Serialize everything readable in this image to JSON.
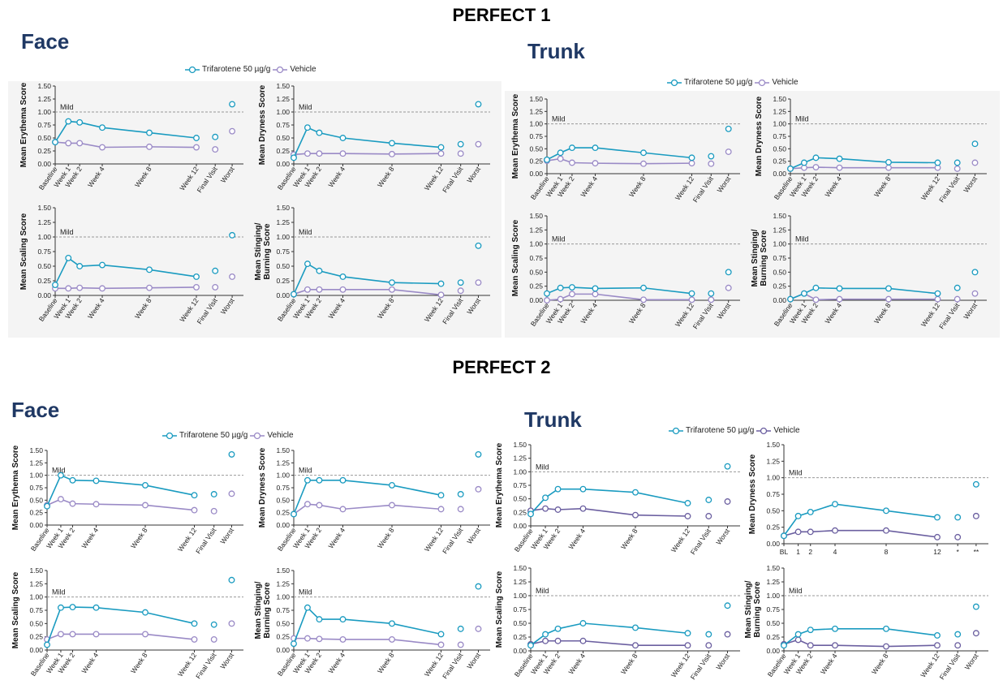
{
  "studies": [
    {
      "title": "PERFECT 1"
    },
    {
      "title": "PERFECT 2"
    }
  ],
  "regions": {
    "p1_face": "Face",
    "p1_trunk": "Trunk",
    "p2_face": "Face",
    "p2_trunk": "Trunk"
  },
  "legend": {
    "trifarotene": "Trifarotene 50 µg/g",
    "vehicle": "Vehicle"
  },
  "colors": {
    "trifarotene": "#1a9bc0",
    "vehicle": "#9a8ac6",
    "vehicle_dark": "#6b5fa0",
    "reference": "#999999"
  },
  "reference_label": "Mild",
  "chart_data": [
    {
      "id": "p1-face-erythema",
      "type": "line",
      "ylabel": "Mean Erythema Score",
      "ylim": [
        0,
        1.5
      ],
      "yticks": [
        "0.00",
        "0.25",
        "0.50",
        "0.75",
        "1.00",
        "1.25",
        "1.50"
      ],
      "reference_y": 1.0,
      "categories": [
        "Baseline",
        "Week 1",
        "Week 2",
        "Week 4",
        "Week 8",
        "Week 12",
        "Final Visit",
        "Worst"
      ],
      "series": [
        {
          "name": "Trifarotene 50 µg/g",
          "values": [
            0.42,
            0.82,
            0.8,
            0.7,
            0.6,
            0.5,
            0.52,
            1.15
          ]
        },
        {
          "name": "Vehicle",
          "values": [
            0.42,
            0.4,
            0.4,
            0.32,
            0.33,
            0.32,
            0.28,
            0.63
          ]
        }
      ]
    },
    {
      "id": "p1-face-dryness",
      "type": "line",
      "ylabel": "Mean Dryness Score",
      "ylim": [
        0,
        1.5
      ],
      "yticks": [
        "0.00",
        "0.25",
        "0.50",
        "0.75",
        "1.00",
        "1.25",
        "1.50"
      ],
      "reference_y": 1.0,
      "categories": [
        "Baseline",
        "Week 1",
        "Week 2",
        "Week 4",
        "Week 8",
        "Week 12",
        "Final Visit",
        "Worst"
      ],
      "series": [
        {
          "name": "Trifarotene 50 µg/g",
          "values": [
            0.12,
            0.7,
            0.6,
            0.5,
            0.4,
            0.32,
            0.38,
            1.15
          ]
        },
        {
          "name": "Vehicle",
          "values": [
            0.18,
            0.2,
            0.2,
            0.2,
            0.19,
            0.2,
            0.2,
            0.38
          ]
        }
      ]
    },
    {
      "id": "p1-face-scaling",
      "type": "line",
      "ylabel": "Mean Scaling Score",
      "ylim": [
        0,
        1.5
      ],
      "yticks": [
        "0.00",
        "0.25",
        "0.50",
        "0.75",
        "1.00",
        "1.25",
        "1.50"
      ],
      "reference_y": 1.0,
      "categories": [
        "Baseline",
        "Week 1",
        "Week 2",
        "Week 4",
        "Week 8",
        "Week 12",
        "Final Visit",
        "Worst"
      ],
      "series": [
        {
          "name": "Trifarotene 50 µg/g",
          "values": [
            0.18,
            0.64,
            0.5,
            0.52,
            0.44,
            0.32,
            0.42,
            1.03
          ]
        },
        {
          "name": "Vehicle",
          "values": [
            0.12,
            0.12,
            0.13,
            0.12,
            0.13,
            0.14,
            0.14,
            0.32
          ]
        }
      ]
    },
    {
      "id": "p1-face-stinging",
      "type": "line",
      "ylabel": "Mean Stinging/ Burning Score",
      "ylim": [
        0,
        1.5
      ],
      "yticks": [
        "0.00",
        "0.25",
        "0.50",
        "0.75",
        "1.00",
        "1.25",
        "1.50"
      ],
      "reference_y": 1.0,
      "categories": [
        "Baseline",
        "Week 1",
        "Week 2",
        "Week 4",
        "Week 8",
        "Week 12",
        "Final Visit",
        "Worst"
      ],
      "series": [
        {
          "name": "Trifarotene 50 µg/g",
          "values": [
            0.02,
            0.54,
            0.42,
            0.32,
            0.22,
            0.2,
            0.22,
            0.85
          ]
        },
        {
          "name": "Vehicle",
          "values": [
            0.02,
            0.1,
            0.1,
            0.1,
            0.1,
            0.01,
            0.08,
            0.22
          ]
        }
      ]
    },
    {
      "id": "p1-trunk-erythema",
      "type": "line",
      "ylabel": "Mean Erythema Score",
      "ylim": [
        0,
        1.5
      ],
      "yticks": [
        "0.00",
        "0.25",
        "0.50",
        "0.75",
        "1.00",
        "1.25",
        "1.50"
      ],
      "reference_y": 1.0,
      "categories": [
        "Baseline",
        "Week 1",
        "Week 2",
        "Week 4",
        "Week 8",
        "Week 12",
        "Final Visit",
        "Worst"
      ],
      "series": [
        {
          "name": "Trifarotene 50 µg/g",
          "values": [
            0.28,
            0.42,
            0.52,
            0.52,
            0.42,
            0.32,
            0.35,
            0.9
          ]
        },
        {
          "name": "Vehicle",
          "values": [
            0.26,
            0.3,
            0.22,
            0.21,
            0.2,
            0.21,
            0.2,
            0.44
          ]
        }
      ]
    },
    {
      "id": "p1-trunk-dryness",
      "type": "line",
      "ylabel": "Mean Dryness Score",
      "ylim": [
        0,
        1.5
      ],
      "yticks": [
        "0.00",
        "0.25",
        "0.50",
        "0.75",
        "1.00",
        "1.25",
        "1.50"
      ],
      "reference_y": 1.0,
      "categories": [
        "Baseline",
        "Week 1",
        "Week 2",
        "Week 4",
        "Week 8",
        "Week 12",
        "Final Visit",
        "Worst"
      ],
      "series": [
        {
          "name": "Trifarotene 50 µg/g",
          "values": [
            0.1,
            0.22,
            0.32,
            0.3,
            0.23,
            0.22,
            0.22,
            0.6
          ]
        },
        {
          "name": "Vehicle",
          "values": [
            0.1,
            0.12,
            0.13,
            0.12,
            0.12,
            0.12,
            0.1,
            0.22
          ]
        }
      ]
    },
    {
      "id": "p1-trunk-scaling",
      "type": "line",
      "ylabel": "Mean Scaling Score",
      "ylim": [
        0,
        1.5
      ],
      "yticks": [
        "0.00",
        "0.25",
        "0.50",
        "0.75",
        "1.00",
        "1.25",
        "1.50"
      ],
      "reference_y": 1.0,
      "categories": [
        "Baseline",
        "Week 1",
        "Week 2",
        "Week 4",
        "Week 8",
        "Week 12",
        "Final Visit",
        "Worst"
      ],
      "series": [
        {
          "name": "Trifarotene 50 µg/g",
          "values": [
            0.12,
            0.22,
            0.23,
            0.21,
            0.22,
            0.12,
            0.12,
            0.5
          ]
        },
        {
          "name": "Vehicle",
          "values": [
            0.0,
            0.02,
            0.11,
            0.11,
            0.01,
            0.01,
            0.01,
            0.22
          ]
        }
      ]
    },
    {
      "id": "p1-trunk-stinging",
      "type": "line",
      "ylabel": "Mean Stinging/ Burning Score",
      "ylim": [
        0,
        1.5
      ],
      "yticks": [
        "0.00",
        "0.25",
        "0.50",
        "0.75",
        "1.00",
        "1.25",
        "1.50"
      ],
      "reference_y": 1.0,
      "categories": [
        "Baseline",
        "Week 1",
        "Week 2",
        "Week 4",
        "Week 8",
        "Week 12",
        "Final Visit",
        "Worst"
      ],
      "series": [
        {
          "name": "Trifarotene 50 µg/g",
          "values": [
            0.02,
            0.12,
            0.22,
            0.21,
            0.21,
            0.12,
            0.22,
            0.5
          ]
        },
        {
          "name": "Vehicle",
          "values": [
            0.02,
            0.12,
            0.01,
            0.02,
            0.02,
            0.02,
            0.02,
            0.12
          ]
        }
      ]
    },
    {
      "id": "p2-face-erythema",
      "type": "line",
      "ylabel": "Mean Erythema Score",
      "ylim": [
        0,
        1.5
      ],
      "yticks": [
        "0.00",
        "0.25",
        "0.50",
        "0.75",
        "1.00",
        "1.25",
        "1.50"
      ],
      "reference_y": 1.0,
      "categories": [
        "Baseline",
        "Week 1",
        "Week 2",
        "Week 4",
        "Week 8",
        "Week 12",
        "Final Visit",
        "Worst"
      ],
      "series": [
        {
          "name": "Trifarotene 50 µg/g",
          "values": [
            0.38,
            1.0,
            0.9,
            0.89,
            0.8,
            0.6,
            0.62,
            1.42
          ]
        },
        {
          "name": "Vehicle",
          "values": [
            0.4,
            0.52,
            0.43,
            0.42,
            0.4,
            0.3,
            0.28,
            0.63
          ]
        }
      ]
    },
    {
      "id": "p2-face-dryness",
      "type": "line",
      "ylabel": "Mean Dryness Score",
      "ylim": [
        0,
        1.5
      ],
      "yticks": [
        "0.00",
        "0.25",
        "0.50",
        "0.75",
        "1.00",
        "1.25",
        "1.50"
      ],
      "reference_y": 1.0,
      "categories": [
        "Baseline",
        "Week 1",
        "Week 2",
        "Week 4",
        "Week 8",
        "Week 12",
        "Final Visit",
        "Worst"
      ],
      "series": [
        {
          "name": "Trifarotene 50 µg/g",
          "values": [
            0.22,
            0.9,
            0.9,
            0.9,
            0.8,
            0.6,
            0.62,
            1.42
          ]
        },
        {
          "name": "Vehicle",
          "values": [
            0.22,
            0.42,
            0.4,
            0.32,
            0.4,
            0.32,
            0.32,
            0.72
          ]
        }
      ]
    },
    {
      "id": "p2-face-scaling",
      "type": "line",
      "ylabel": "Mean Scaling Score",
      "ylim": [
        0,
        1.5
      ],
      "yticks": [
        "0.00",
        "0.25",
        "0.50",
        "0.75",
        "1.00",
        "1.25",
        "1.50"
      ],
      "reference_y": 1.0,
      "categories": [
        "Baseline",
        "Week 1",
        "Week 2",
        "Week 4",
        "Week 8",
        "Week 12",
        "Final Visit",
        "Worst"
      ],
      "series": [
        {
          "name": "Trifarotene 50 µg/g",
          "values": [
            0.1,
            0.8,
            0.81,
            0.8,
            0.71,
            0.5,
            0.48,
            1.32
          ]
        },
        {
          "name": "Vehicle",
          "values": [
            0.2,
            0.3,
            0.3,
            0.3,
            0.3,
            0.2,
            0.2,
            0.5
          ]
        }
      ]
    },
    {
      "id": "p2-face-stinging",
      "type": "line",
      "ylabel": "Mean Stinging/ Burning Score",
      "ylim": [
        0,
        1.5
      ],
      "yticks": [
        "0.00",
        "0.25",
        "0.50",
        "0.75",
        "1.00",
        "1.25",
        "1.50"
      ],
      "reference_y": 1.0,
      "categories": [
        "Baseline",
        "Week 1",
        "Week 2",
        "Week 4",
        "Week 8",
        "Week 12",
        "Final Visit",
        "Worst"
      ],
      "series": [
        {
          "name": "Trifarotene 50 µg/g",
          "values": [
            0.12,
            0.8,
            0.58,
            0.58,
            0.5,
            0.3,
            0.4,
            1.2
          ]
        },
        {
          "name": "Vehicle",
          "values": [
            0.22,
            0.22,
            0.21,
            0.2,
            0.2,
            0.1,
            0.1,
            0.4
          ]
        }
      ]
    },
    {
      "id": "p2-trunk-erythema",
      "type": "line",
      "ylabel": "Mean Erythema Score",
      "ylim": [
        0,
        1.5
      ],
      "yticks": [
        "0.00",
        "0.25",
        "0.50",
        "0.75",
        "1.00",
        "1.25",
        "1.50"
      ],
      "reference_y": 1.0,
      "categories": [
        "Baseline",
        "Week 1",
        "Week 2",
        "Week 4",
        "Week 8",
        "Week 12",
        "Final Visit",
        "Worst"
      ],
      "series": [
        {
          "name": "Trifarotene 50 µg/g",
          "values": [
            0.22,
            0.52,
            0.68,
            0.68,
            0.62,
            0.42,
            0.48,
            1.1
          ]
        },
        {
          "name": "Vehicle",
          "values": [
            0.28,
            0.32,
            0.3,
            0.32,
            0.2,
            0.18,
            0.18,
            0.45
          ]
        }
      ]
    },
    {
      "id": "p2-trunk-dryness",
      "type": "line",
      "ylabel": "Mean Dryness Score",
      "ylim": [
        0,
        1.5
      ],
      "yticks": [
        "0.00",
        "0.25",
        "0.50",
        "0.75",
        "1.00",
        "1.25",
        "1.50"
      ],
      "reference_y": 1.0,
      "categories": [
        "BL",
        "1",
        "2",
        "4",
        "8",
        "12",
        "*",
        "**"
      ],
      "series": [
        {
          "name": "Trifarotene 50 µg/g",
          "values": [
            0.12,
            0.42,
            0.48,
            0.6,
            0.5,
            0.4,
            0.4,
            0.9
          ]
        },
        {
          "name": "Vehicle",
          "values": [
            0.12,
            0.18,
            0.18,
            0.2,
            0.2,
            0.1,
            0.1,
            0.42
          ]
        }
      ]
    },
    {
      "id": "p2-trunk-scaling",
      "type": "line",
      "ylabel": "Mean Scaling Score",
      "ylim": [
        0,
        1.5
      ],
      "yticks": [
        "0.00",
        "0.25",
        "0.50",
        "0.75",
        "1.00",
        "1.25",
        "1.50"
      ],
      "reference_y": 1.0,
      "categories": [
        "Baseline",
        "Week 1",
        "Week 2",
        "Week 4",
        "Week 8",
        "Week 12",
        "Final Visit",
        "Worst"
      ],
      "series": [
        {
          "name": "Trifarotene 50 µg/g",
          "values": [
            0.1,
            0.3,
            0.4,
            0.5,
            0.42,
            0.32,
            0.3,
            0.82
          ]
        },
        {
          "name": "Vehicle",
          "values": [
            0.12,
            0.18,
            0.18,
            0.18,
            0.1,
            0.1,
            0.1,
            0.3
          ]
        }
      ]
    },
    {
      "id": "p2-trunk-stinging",
      "type": "line",
      "ylabel": "Mean Stinging/ Burning Score",
      "ylim": [
        0,
        1.5
      ],
      "yticks": [
        "0.00",
        "0.25",
        "0.50",
        "0.75",
        "1.00",
        "1.25",
        "1.50"
      ],
      "reference_y": 1.0,
      "categories": [
        "Baseline",
        "Week 1",
        "Week 2",
        "Week 4",
        "Week 8",
        "Week 12",
        "Final Visit",
        "Worst"
      ],
      "series": [
        {
          "name": "Trifarotene 50 µg/g",
          "values": [
            0.1,
            0.3,
            0.38,
            0.4,
            0.4,
            0.28,
            0.3,
            0.8
          ]
        },
        {
          "name": "Vehicle",
          "values": [
            0.12,
            0.2,
            0.1,
            0.1,
            0.08,
            0.1,
            0.1,
            0.32
          ]
        }
      ]
    }
  ]
}
